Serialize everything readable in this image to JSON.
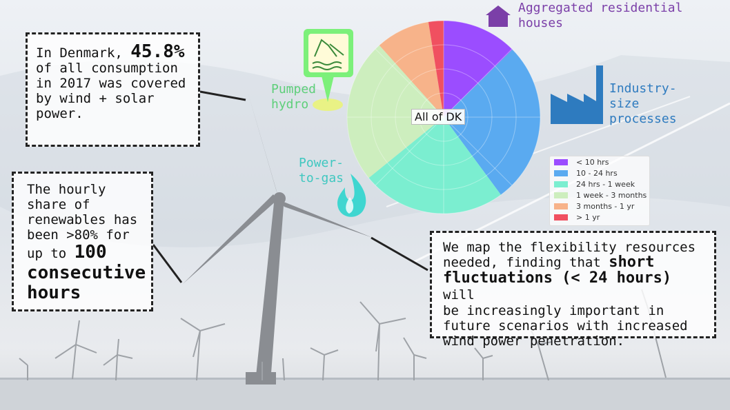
{
  "denmark_box": {
    "line1_prefix": "In Denmark, ",
    "line1_value": "45.8%",
    "line2": "of all consumption",
    "line3": "in 2017 was covered",
    "line4": "by wind + solar",
    "line5": "power."
  },
  "hourly_box": {
    "line1": "The hourly",
    "line2": "share of",
    "line3": "renewables has",
    "line4": "been >80% for",
    "line5_prefix": "up to ",
    "line5_value": "100",
    "line6": "consecutive",
    "line7": "hours"
  },
  "flex_box": {
    "line1": "We map the flexibility resources",
    "line2": "needed, finding that ",
    "line2_bold": "short",
    "line3_bold": "fluctuations (< 24 hours)",
    "line3_rest": " will",
    "line4": "be increasingly important in",
    "line5": "future scenarios with increased",
    "line6": "wind power penetration."
  },
  "icon_labels": {
    "residential_line1": "Aggregated residential",
    "residential_line2": "houses",
    "industry_line1": "Industry-",
    "industry_line2": "size",
    "industry_line3": "processes",
    "pumped_line1": "Pumped",
    "pumped_line2": "hydro",
    "ptg_line1": "Power-",
    "ptg_line2": "to-gas"
  },
  "colors": {
    "residential": "#7b3fa8",
    "industry": "#2e7bbf",
    "pumped": "#6ce08a",
    "ptg": "#3fc7c0"
  },
  "chart_data": {
    "type": "pie",
    "center_label": "All of DK",
    "categories": [
      "< 10 hrs",
      "10 - 24 hrs",
      "24 hrs - 1 week",
      "1 week - 3 months",
      "3 months - 1 yr",
      "> 1 yr"
    ],
    "values": [
      0.125,
      0.27,
      0.24,
      0.24,
      0.09,
      0.025
    ],
    "colors": [
      "#9b4dff",
      "#5aaaf0",
      "#7beed0",
      "#cdeebe",
      "#f7b38a",
      "#f05060"
    ],
    "legend_placement": "right"
  }
}
